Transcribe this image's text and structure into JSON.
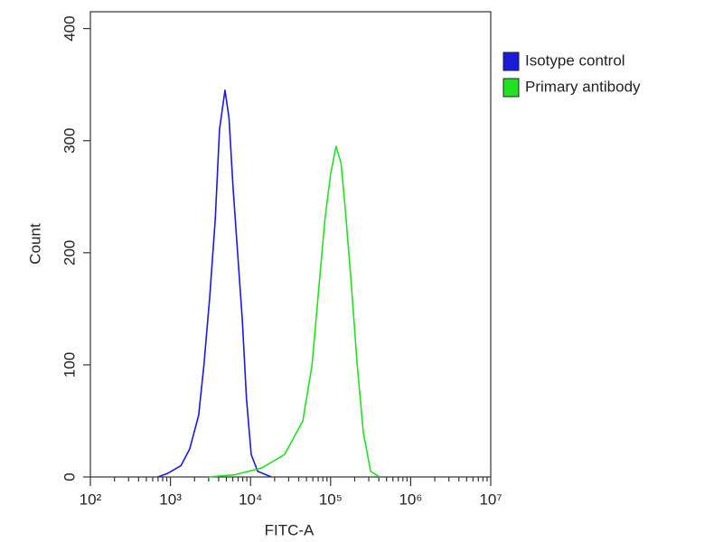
{
  "chart_data": {
    "type": "line",
    "xlabel": "FITC-A",
    "ylabel": "Count",
    "xscale": "log",
    "xlim": [
      100,
      10000000
    ],
    "xticks": [
      {
        "value": 100,
        "label": "10²"
      },
      {
        "value": 1000,
        "label": "10³"
      },
      {
        "value": 10000,
        "label": "10⁴"
      },
      {
        "value": 100000,
        "label": "10⁵"
      },
      {
        "value": 1000000,
        "label": "10⁶"
      },
      {
        "value": 10000000,
        "label": "10⁷"
      }
    ],
    "ylim": [
      0,
      415
    ],
    "yticks": [
      0,
      100,
      200,
      300,
      400
    ],
    "legend": "right",
    "series": [
      {
        "name": "Isotype control",
        "color": "#1a1adc",
        "x": [
          700,
          910,
          1350,
          1740,
          2250,
          2620,
          3090,
          3630,
          4100,
          4800,
          5390,
          6030,
          6900,
          7900,
          8900,
          10200,
          12300,
          18200
        ],
        "values": [
          0,
          3,
          10,
          25,
          55,
          100,
          160,
          230,
          310,
          345,
          320,
          260,
          200,
          140,
          70,
          20,
          5,
          0
        ]
      },
      {
        "name": "Primary antibody",
        "color": "#22e022",
        "x": [
          2950,
          6400,
          13800,
          26600,
          45000,
          58600,
          69600,
          85000,
          100000,
          117000,
          135000,
          152000,
          178000,
          215000,
          256000,
          316000,
          410000
        ],
        "values": [
          0,
          2,
          8,
          20,
          50,
          100,
          160,
          230,
          270,
          295,
          280,
          240,
          180,
          100,
          40,
          5,
          0
        ]
      }
    ]
  }
}
